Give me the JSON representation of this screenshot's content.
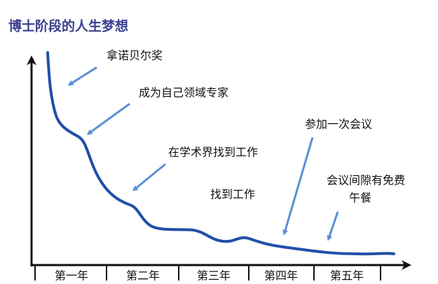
{
  "title": "博士阶段的人生梦想",
  "x_axis": {
    "labels": [
      "第一年",
      "第二年",
      "第三年",
      "第四年",
      "第五年"
    ]
  },
  "annotations": [
    "拿诺贝尔奖",
    "成为自己领域专家",
    "在学术界找到工作",
    "找到工作",
    "参加一次会议",
    "会议间隙有免费",
    "午餐"
  ]
}
